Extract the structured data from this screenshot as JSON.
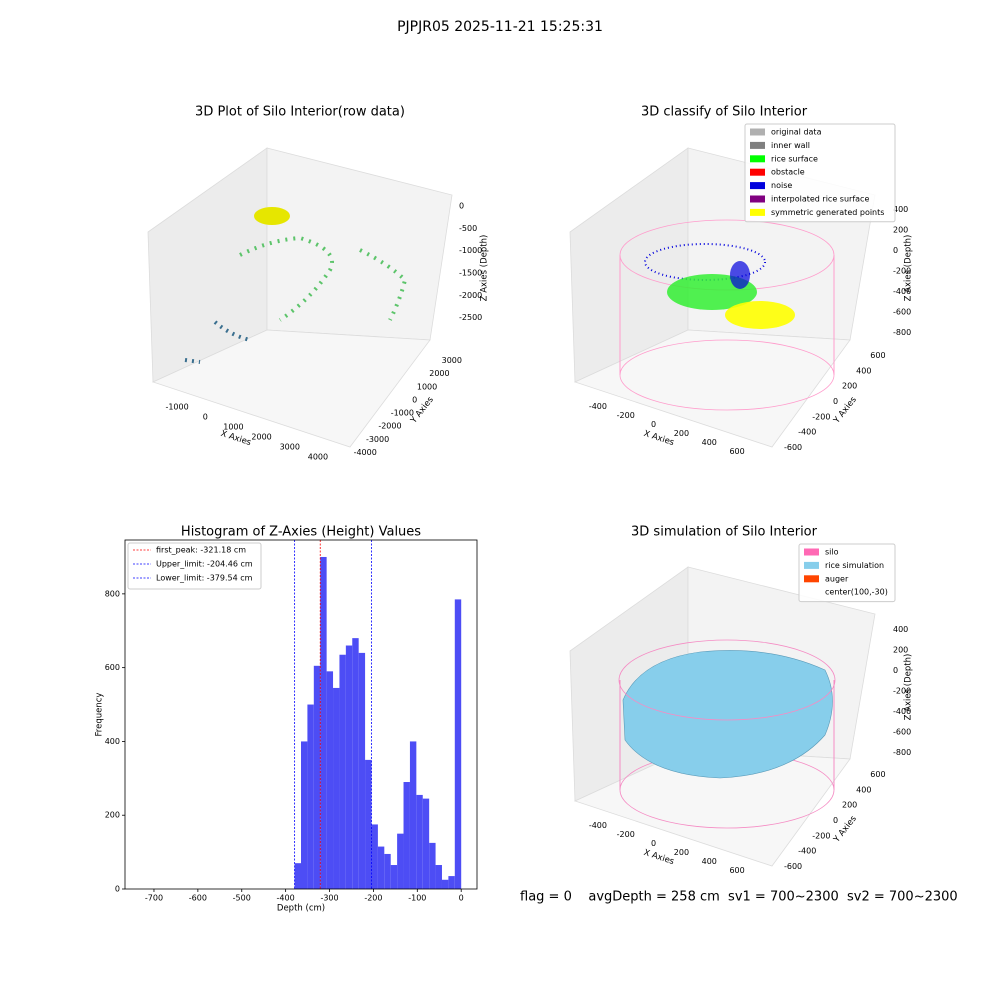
{
  "title": "PJPJR05 2025-11-21 15:25:31",
  "footer": "flag = 0    avgDepth = 258 cm  sv1 = 700~2300  sv2 = 700~2300",
  "chart_data": [
    {
      "type": "scatter3d",
      "title": "3D Plot of Silo Interior(row data)",
      "xlabel": "X Axies",
      "ylabel": "Y Axies",
      "zlabel": "Z Axies (Depth)",
      "xlim": [
        -1500,
        4500
      ],
      "xticks": [
        -1000,
        0,
        1000,
        2000,
        3000,
        4000
      ],
      "ylim": [
        -4500,
        3500
      ],
      "yticks": [
        -4000,
        -3000,
        -2000,
        -1000,
        0,
        1000,
        2000,
        3000
      ],
      "zlim": [
        -2800,
        200
      ],
      "zticks": [
        -2500,
        -2000,
        -1500,
        -1000,
        -500,
        0
      ]
    },
    {
      "type": "scatter3d",
      "title": "3D classify of Silo Interior",
      "xlabel": "X Axies",
      "ylabel": "Y Axies",
      "zlabel": "Z Axies (Depth)",
      "xlim": [
        -500,
        700
      ],
      "xticks": [
        -400,
        -200,
        0,
        200,
        400,
        600
      ],
      "ylim": [
        -700,
        700
      ],
      "yticks": [
        -600,
        -400,
        -200,
        0,
        200,
        400,
        600
      ],
      "zlim": [
        -900,
        500
      ],
      "zticks": [
        -800,
        -600,
        -400,
        -200,
        0,
        200,
        400
      ],
      "series": [
        {
          "name": "original data",
          "color": "#b0b0b0"
        },
        {
          "name": "inner wall",
          "color": "#808080"
        },
        {
          "name": "rice surface",
          "color": "#00ff00"
        },
        {
          "name": "obstacle",
          "color": "#ff0000"
        },
        {
          "name": "noise",
          "color": "#0000dd"
        },
        {
          "name": "interpolated rice surface",
          "color": "#800080"
        },
        {
          "name": "symmetric generated points",
          "color": "#ffff00"
        }
      ]
    },
    {
      "type": "histogram",
      "title": "Histogram of Z-Axies (Height) Values",
      "xlabel": "Depth (cm)",
      "ylabel": "Frequency",
      "color": "#4d4df5",
      "xlim": [
        -766,
        36
      ],
      "xticks": [
        -700,
        -600,
        -500,
        -400,
        -300,
        -200,
        -100,
        0
      ],
      "ylim": [
        0,
        946
      ],
      "yticks": [
        0,
        200,
        400,
        600,
        800
      ],
      "bins": [
        -379.6,
        -365.0,
        -350.4,
        -335.8,
        -321.2,
        -306.6,
        -292.0,
        -277.4,
        -262.8,
        -248.2,
        -233.6,
        -219.0,
        -204.4,
        -189.8,
        -175.2,
        -160.6,
        -146.0,
        -131.4,
        -116.8,
        -102.2,
        -87.6,
        -73.0,
        -58.4,
        -43.8,
        -29.2,
        -14.6,
        0
      ],
      "values": [
        70,
        400,
        500,
        605,
        900,
        590,
        545,
        635,
        660,
        680,
        640,
        350,
        175,
        115,
        95,
        65,
        150,
        290,
        400,
        255,
        245,
        125,
        65,
        25,
        35,
        785
      ],
      "lines": [
        {
          "name": "first_peak: -321.18 cm",
          "value": -321.18,
          "color": "#ff0000"
        },
        {
          "name": "Upper_limit: -204.46 cm",
          "value": -204.46,
          "color": "#0000ff"
        },
        {
          "name": "Lower_limit: -379.54 cm",
          "value": -379.54,
          "color": "#0000ff"
        }
      ]
    },
    {
      "type": "surface3d",
      "title": "3D simulation of Silo Interior",
      "xlabel": "X Axies",
      "ylabel": "Y Axies",
      "zlabel": "Z Axies (Depth)",
      "xlim": [
        -500,
        700
      ],
      "xticks": [
        -400,
        -200,
        0,
        200,
        400,
        600
      ],
      "ylim": [
        -700,
        700
      ],
      "yticks": [
        -600,
        -400,
        -200,
        0,
        200,
        400,
        600
      ],
      "zlim": [
        -900,
        500
      ],
      "zticks": [
        -800,
        -600,
        -400,
        -200,
        0,
        200,
        400
      ],
      "series": [
        {
          "name": "silo",
          "color": "#ff69b4"
        },
        {
          "name": "rice simulation",
          "color": "#87ceeb"
        },
        {
          "name": "auger",
          "color": "#ff4500"
        },
        {
          "name": "center(100,-30)"
        }
      ]
    }
  ]
}
